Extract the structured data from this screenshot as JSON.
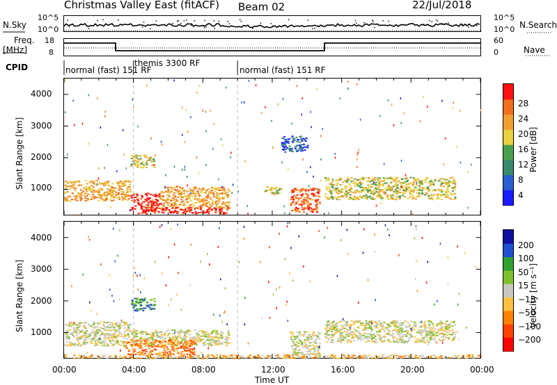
{
  "header": {
    "title": "Christmas Valley East (fitACF)",
    "beam": "Beam 02",
    "date": "22/Jul/2018"
  },
  "nsky_panel": {
    "left_label": "N.Sky",
    "right_label": "N.Search",
    "ticks_left": [
      "10^5",
      "10^0"
    ],
    "ticks_right": [
      "10^5",
      "10^0"
    ]
  },
  "freq_panel": {
    "left_label_1": "Freq.",
    "left_label_2": "[MHz]",
    "right_label": "Nave",
    "ticks_left": [
      "18",
      "8"
    ],
    "ticks_right": [
      "60",
      "0"
    ]
  },
  "cpid": {
    "label": "CPID",
    "segments": [
      {
        "start": 0,
        "end": 4,
        "text": "normal (fast) 151 RF"
      },
      {
        "start": 4,
        "end": 10,
        "text": "themis 3300 RF"
      },
      {
        "start": 10,
        "end": 24,
        "text": "normal (fast) 151 RF"
      }
    ]
  },
  "colors": {
    "power": [
      "#1a1aff",
      "#2a5fd0",
      "#3a8a70",
      "#4aa050",
      "#e8d040",
      "#f0a030",
      "#f07020",
      "#ff1010"
    ],
    "velocity": [
      "#ff0000",
      "#ff4000",
      "#ff8000",
      "#ffc040",
      "#c8c8c0",
      "#80c030",
      "#30a030",
      "#2050d0",
      "#1010a0"
    ],
    "scatter_gray": "#c8c8c0"
  },
  "chart_data": [
    {
      "type": "heatmap",
      "panel": "power",
      "xlabel": "Time UT",
      "ylabel": "Slant Range [km]",
      "xlim": [
        0,
        24
      ],
      "ylim": [
        200,
        4500
      ],
      "y_ticks": [
        "1000",
        "2000",
        "3000",
        "4000"
      ],
      "colorbar": {
        "label": "Power [dB]",
        "ticks": [
          "4",
          "8",
          "12",
          "16",
          "20",
          "24",
          "28"
        ]
      },
      "regions": [
        {
          "t0": 0.0,
          "t1": 3.8,
          "r0": 650,
          "r1": 1300,
          "level": 5
        },
        {
          "t0": 3.8,
          "t1": 5.5,
          "r0": 350,
          "r1": 900,
          "level": 7
        },
        {
          "t0": 5.5,
          "t1": 9.5,
          "r0": 400,
          "r1": 1100,
          "level": 5
        },
        {
          "t0": 4.2,
          "t1": 9.5,
          "r0": 250,
          "r1": 450,
          "level": 7
        },
        {
          "t0": 3.8,
          "t1": 5.2,
          "r0": 1700,
          "r1": 2100,
          "level": 4
        },
        {
          "t0": 11.5,
          "t1": 12.5,
          "r0": 850,
          "r1": 1100,
          "level": 4
        },
        {
          "t0": 13.0,
          "t1": 14.7,
          "r0": 300,
          "r1": 1050,
          "level": 6
        },
        {
          "t0": 15.0,
          "t1": 22.5,
          "r0": 700,
          "r1": 1400,
          "level": 4
        },
        {
          "t0": 12.5,
          "t1": 14.0,
          "r0": 2200,
          "r1": 2700,
          "level": 1
        }
      ]
    },
    {
      "type": "heatmap",
      "panel": "velocity",
      "xlabel": "Time UT",
      "ylabel": "Slant Range [km]",
      "xlim": [
        0,
        24
      ],
      "ylim": [
        200,
        4500
      ],
      "x_ticks": [
        "00:00",
        "04:00",
        "08:00",
        "12:00",
        "16:00",
        "20:00",
        "00:00"
      ],
      "y_ticks": [
        "1000",
        "2000",
        "3000",
        "4000"
      ],
      "colorbar": {
        "label": "Velocity [m s⁻¹]",
        "ticks": [
          "200",
          "100",
          "50",
          "15",
          "−15",
          "−50",
          "−100",
          "−200"
        ]
      },
      "regions": [
        {
          "t0": 0.0,
          "t1": 3.8,
          "r0": 600,
          "r1": 1350,
          "level": 4
        },
        {
          "t0": 3.8,
          "t1": 9.5,
          "r0": 600,
          "r1": 1100,
          "level": 4
        },
        {
          "t0": 3.5,
          "t1": 7.5,
          "r0": 300,
          "r1": 800,
          "level": 2
        },
        {
          "t0": 3.8,
          "t1": 5.2,
          "r0": 1700,
          "r1": 2100,
          "level": 6
        },
        {
          "t0": 13.0,
          "t1": 14.7,
          "r0": 300,
          "r1": 1050,
          "level": 4
        },
        {
          "t0": 15.0,
          "t1": 22.5,
          "r0": 700,
          "r1": 1400,
          "level": 4
        },
        {
          "t0": 0.0,
          "t1": 24.0,
          "r0": 200,
          "r1": 320,
          "level": 3
        }
      ]
    }
  ]
}
